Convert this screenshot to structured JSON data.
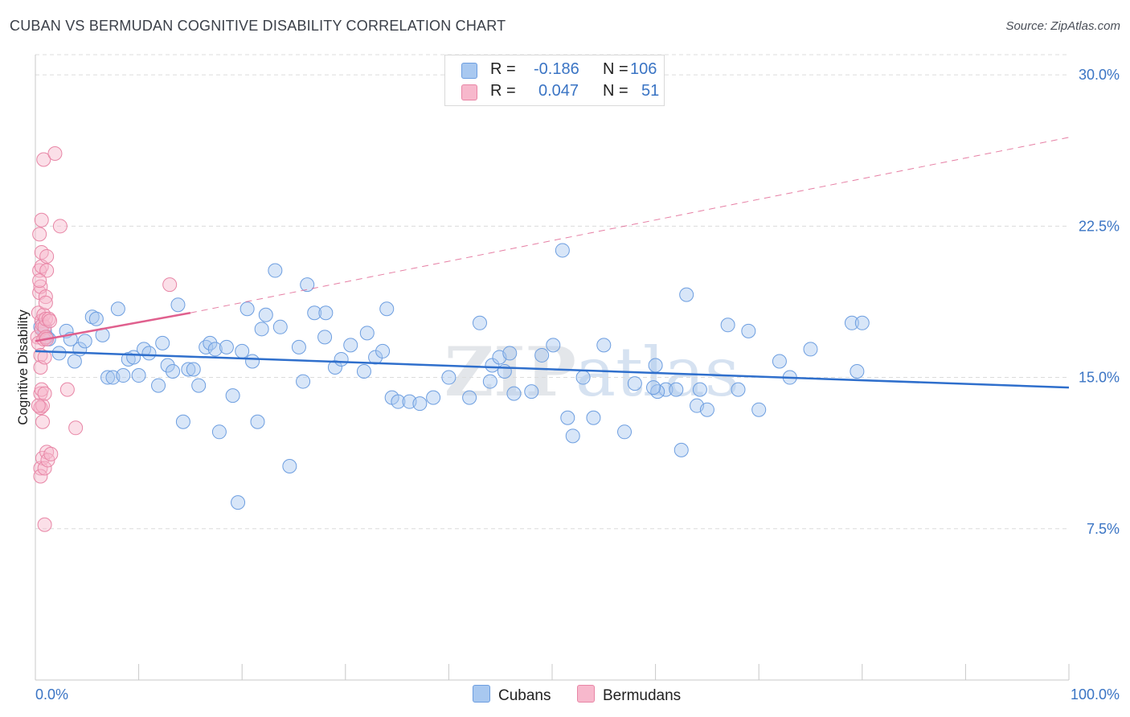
{
  "title": "CUBAN VS BERMUDAN COGNITIVE DISABILITY CORRELATION CHART",
  "source": "Source: ZipAtlas.com",
  "watermark": {
    "zip": "ZIP",
    "atlas": "atlas"
  },
  "legend": {
    "rows": [
      {
        "r_label": "R =",
        "r_value": "-0.186",
        "n_label": "N =",
        "n_value": "106",
        "color": "#a8c8f0",
        "border": "#6d9ee0"
      },
      {
        "r_label": "R =",
        "r_value": "0.047",
        "n_label": "N =",
        "n_value": "51",
        "color": "#f7b8cc",
        "border": "#e886a6"
      }
    ]
  },
  "bottom_legend": [
    {
      "label": "Cubans",
      "color": "#a8c8f0",
      "border": "#6d9ee0"
    },
    {
      "label": "Bermudans",
      "color": "#f7b8cc",
      "border": "#e886a6"
    }
  ],
  "chart_data": {
    "type": "scatter",
    "title": "CUBAN VS BERMUDAN COGNITIVE DISABILITY CORRELATION CHART",
    "xlabel": "",
    "ylabel": "Cognitive Disability",
    "xlim": [
      0,
      100
    ],
    "ylim": [
      0,
      31
    ],
    "x_tick_labels": [
      "0.0%",
      "100.0%"
    ],
    "y_ticks": [
      7.5,
      15.0,
      22.5,
      30.0
    ],
    "y_tick_labels": [
      "7.5%",
      "15.0%",
      "22.5%",
      "30.0%"
    ],
    "grid": true,
    "series": [
      {
        "name": "Cubans",
        "color": "#6d9ee0",
        "fill": "#a8c8f0",
        "trend_color": "#2f6fcc",
        "trend": {
          "x": [
            0,
            100
          ],
          "y": [
            16.3,
            14.5
          ]
        },
        "points": [
          [
            0.5,
            17.5
          ],
          [
            0.9,
            17.3
          ],
          [
            1.1,
            17.0
          ],
          [
            1.3,
            16.9
          ],
          [
            2.3,
            16.2
          ],
          [
            3.0,
            17.3
          ],
          [
            3.4,
            16.9
          ],
          [
            3.8,
            15.8
          ],
          [
            4.3,
            16.4
          ],
          [
            4.8,
            16.8
          ],
          [
            5.5,
            18.0
          ],
          [
            5.9,
            17.9
          ],
          [
            6.5,
            17.1
          ],
          [
            7.0,
            15.0
          ],
          [
            7.5,
            15.0
          ],
          [
            8.0,
            18.4
          ],
          [
            8.5,
            15.1
          ],
          [
            9.0,
            15.9
          ],
          [
            9.5,
            16.0
          ],
          [
            10.0,
            15.1
          ],
          [
            10.5,
            16.4
          ],
          [
            11.0,
            16.2
          ],
          [
            11.9,
            14.6
          ],
          [
            12.3,
            16.7
          ],
          [
            12.8,
            15.6
          ],
          [
            13.3,
            15.3
          ],
          [
            13.8,
            18.6
          ],
          [
            14.3,
            12.8
          ],
          [
            14.8,
            15.4
          ],
          [
            15.3,
            15.4
          ],
          [
            15.8,
            14.6
          ],
          [
            16.5,
            16.5
          ],
          [
            16.9,
            16.7
          ],
          [
            17.4,
            16.4
          ],
          [
            17.8,
            12.3
          ],
          [
            18.5,
            16.5
          ],
          [
            19.1,
            14.1
          ],
          [
            19.6,
            8.8
          ],
          [
            20.0,
            16.3
          ],
          [
            20.5,
            18.4
          ],
          [
            21.0,
            15.8
          ],
          [
            21.5,
            12.8
          ],
          [
            21.9,
            17.4
          ],
          [
            22.3,
            18.1
          ],
          [
            23.2,
            20.3
          ],
          [
            23.7,
            17.5
          ],
          [
            24.6,
            10.6
          ],
          [
            25.5,
            16.5
          ],
          [
            25.9,
            14.8
          ],
          [
            26.3,
            19.6
          ],
          [
            27.0,
            18.2
          ],
          [
            28.1,
            18.2
          ],
          [
            28.0,
            17.0
          ],
          [
            29.0,
            15.5
          ],
          [
            29.6,
            15.9
          ],
          [
            30.5,
            16.6
          ],
          [
            31.8,
            15.3
          ],
          [
            32.1,
            17.2
          ],
          [
            32.9,
            16.0
          ],
          [
            33.6,
            16.3
          ],
          [
            34.0,
            18.4
          ],
          [
            34.5,
            14.0
          ],
          [
            35.1,
            13.8
          ],
          [
            36.2,
            13.8
          ],
          [
            37.2,
            13.7
          ],
          [
            40.0,
            15.0
          ],
          [
            42.0,
            14.0
          ],
          [
            43.0,
            17.7
          ],
          [
            44.0,
            14.8
          ],
          [
            44.2,
            15.6
          ],
          [
            44.9,
            16.0
          ],
          [
            45.4,
            15.3
          ],
          [
            45.9,
            16.2
          ],
          [
            46.3,
            14.2
          ],
          [
            48.0,
            14.3
          ],
          [
            49.0,
            16.1
          ],
          [
            50.1,
            16.6
          ],
          [
            51.0,
            21.3
          ],
          [
            51.5,
            13.0
          ],
          [
            52.0,
            12.1
          ],
          [
            53.0,
            15.0
          ],
          [
            54.0,
            13.0
          ],
          [
            55.0,
            16.6
          ],
          [
            57.0,
            12.3
          ],
          [
            58.0,
            14.7
          ],
          [
            60.0,
            15.6
          ],
          [
            61.0,
            14.4
          ],
          [
            62.5,
            11.4
          ],
          [
            62.0,
            14.4
          ],
          [
            63.0,
            19.1
          ],
          [
            64.0,
            13.6
          ],
          [
            65.0,
            13.4
          ],
          [
            67.0,
            17.6
          ],
          [
            68.0,
            14.4
          ],
          [
            69.0,
            17.3
          ],
          [
            70.0,
            13.4
          ],
          [
            72.0,
            15.8
          ],
          [
            73.0,
            15.0
          ],
          [
            75.0,
            16.4
          ],
          [
            79.0,
            17.7
          ],
          [
            79.5,
            15.3
          ],
          [
            80.0,
            17.7
          ],
          [
            64.3,
            14.4
          ],
          [
            60.2,
            14.3
          ],
          [
            59.8,
            14.5
          ],
          [
            38.5,
            14.0
          ]
        ]
      },
      {
        "name": "Bermudans",
        "color": "#e886a6",
        "fill": "#f7b8cc",
        "trend_color": "#e0608e",
        "trend": {
          "x": [
            0,
            15
          ],
          "y": [
            16.8,
            18.2
          ]
        },
        "trend_dashed": {
          "x": [
            15,
            100
          ],
          "y": [
            18.2,
            26.9
          ]
        },
        "points": [
          [
            0.2,
            17.0
          ],
          [
            0.3,
            16.7
          ],
          [
            0.3,
            18.2
          ],
          [
            0.4,
            19.2
          ],
          [
            0.4,
            20.3
          ],
          [
            0.4,
            22.1
          ],
          [
            0.5,
            16.1
          ],
          [
            0.5,
            15.5
          ],
          [
            0.5,
            14.2
          ],
          [
            0.5,
            13.5
          ],
          [
            0.5,
            13.5
          ],
          [
            0.5,
            10.5
          ],
          [
            0.5,
            10.1
          ],
          [
            0.5,
            19.5
          ],
          [
            0.6,
            17.8
          ],
          [
            0.6,
            17.4
          ],
          [
            0.6,
            20.5
          ],
          [
            0.6,
            21.2
          ],
          [
            0.6,
            22.8
          ],
          [
            0.6,
            14.4
          ],
          [
            0.7,
            13.6
          ],
          [
            0.7,
            11.0
          ],
          [
            0.7,
            12.8
          ],
          [
            0.7,
            17.6
          ],
          [
            0.8,
            25.8
          ],
          [
            0.8,
            18.1
          ],
          [
            0.8,
            16.9
          ],
          [
            0.9,
            17.5
          ],
          [
            0.9,
            16.0
          ],
          [
            0.9,
            14.2
          ],
          [
            0.9,
            10.5
          ],
          [
            0.9,
            7.7
          ],
          [
            1.0,
            17.9
          ],
          [
            1.0,
            19.0
          ],
          [
            1.0,
            18.7
          ],
          [
            1.0,
            17.0
          ],
          [
            1.1,
            16.9
          ],
          [
            1.1,
            20.3
          ],
          [
            1.1,
            21.0
          ],
          [
            1.1,
            11.3
          ],
          [
            1.2,
            10.9
          ],
          [
            1.3,
            17.9
          ],
          [
            1.4,
            17.8
          ],
          [
            1.5,
            11.2
          ],
          [
            1.9,
            26.1
          ],
          [
            2.4,
            22.5
          ],
          [
            3.1,
            14.4
          ],
          [
            3.9,
            12.5
          ],
          [
            13.0,
            19.6
          ],
          [
            0.3,
            13.6
          ],
          [
            0.4,
            19.8
          ]
        ]
      }
    ]
  }
}
